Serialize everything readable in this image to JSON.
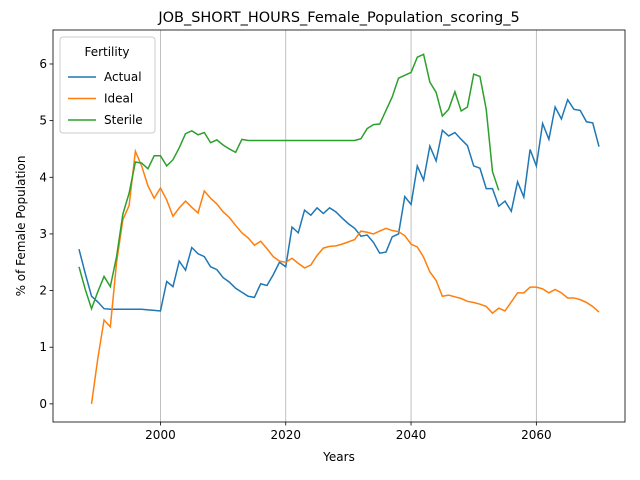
{
  "chart_data": {
    "type": "line",
    "title": "JOB_SHORT_HOURS_Female_Population_scoring_5",
    "x_label": "Years",
    "y_label": "% of Female Population",
    "x": [
      1987,
      1988,
      1989,
      1990,
      1991,
      1992,
      1993,
      1994,
      1995,
      1996,
      1997,
      1998,
      1999,
      2000,
      2001,
      2002,
      2003,
      2004,
      2005,
      2006,
      2007,
      2008,
      2009,
      2010,
      2011,
      2012,
      2013,
      2014,
      2015,
      2016,
      2017,
      2018,
      2019,
      2020,
      2021,
      2022,
      2023,
      2024,
      2025,
      2026,
      2027,
      2028,
      2029,
      2030,
      2031,
      2032,
      2033,
      2034,
      2035,
      2036,
      2037,
      2038,
      2039,
      2040,
      2041,
      2042,
      2043,
      2044,
      2045,
      2046,
      2047,
      2048,
      2049,
      2050,
      2051,
      2052,
      2053,
      2054,
      2055,
      2056,
      2057,
      2058,
      2059,
      2060,
      2061,
      2062,
      2063,
      2064,
      2065,
      2066,
      2067,
      2068,
      2069,
      2070
    ],
    "series": [
      {
        "name": "Actual",
        "color": "#1f77b4",
        "values": [
          2.73,
          2.3,
          1.9,
          1.8,
          1.68,
          1.67,
          1.67,
          1.67,
          1.67,
          1.67,
          1.67,
          1.66,
          1.65,
          1.64,
          2.16,
          2.07,
          2.52,
          2.36,
          2.76,
          2.65,
          2.6,
          2.42,
          2.37,
          2.23,
          2.15,
          2.04,
          1.97,
          1.9,
          1.88,
          2.12,
          2.09,
          2.28,
          2.5,
          2.42,
          3.12,
          3.02,
          3.42,
          3.33,
          3.46,
          3.36,
          3.46,
          3.39,
          3.28,
          3.18,
          3.1,
          2.96,
          2.98,
          2.85,
          2.66,
          2.68,
          2.95,
          3.0,
          3.66,
          3.52,
          4.2,
          3.95,
          4.55,
          4.29,
          4.83,
          4.73,
          4.79,
          4.67,
          4.56,
          4.2,
          4.16,
          3.8,
          3.8,
          3.49,
          3.58,
          3.4,
          3.92,
          3.65,
          4.49,
          4.2,
          4.95,
          4.67,
          5.24,
          5.03,
          5.37,
          5.2,
          5.18,
          4.98,
          4.96,
          4.54
        ]
      },
      {
        "name": "Ideal",
        "color": "#ff7f0e",
        "values": [
          null,
          null,
          0,
          0.8,
          1.48,
          1.36,
          2.5,
          3.25,
          3.5,
          4.46,
          4.2,
          3.85,
          3.63,
          3.81,
          3.6,
          3.31,
          3.46,
          3.58,
          3.47,
          3.37,
          3.76,
          3.63,
          3.53,
          3.39,
          3.29,
          3.15,
          3.02,
          2.93,
          2.8,
          2.87,
          2.74,
          2.6,
          2.52,
          2.5,
          2.57,
          2.48,
          2.4,
          2.45,
          2.62,
          2.75,
          2.78,
          2.79,
          2.82,
          2.86,
          2.9,
          3.05,
          3.03,
          3.0,
          3.05,
          3.1,
          3.06,
          3.04,
          2.97,
          2.82,
          2.77,
          2.59,
          2.33,
          2.18,
          1.9,
          1.92,
          1.89,
          1.86,
          1.81,
          1.79,
          1.76,
          1.72,
          1.6,
          1.69,
          1.64,
          1.8,
          1.96,
          1.96,
          2.06,
          2.06,
          2.03,
          1.96,
          2.02,
          1.96,
          1.87,
          1.87,
          1.84,
          1.79,
          1.72,
          1.62
        ]
      },
      {
        "name": "Sterile",
        "color": "#2ca02c",
        "values": [
          2.42,
          2.02,
          1.68,
          1.98,
          2.25,
          2.07,
          2.6,
          3.35,
          3.72,
          4.27,
          4.25,
          4.15,
          4.38,
          4.38,
          4.2,
          4.31,
          4.52,
          4.77,
          4.82,
          4.75,
          4.79,
          4.61,
          4.66,
          4.57,
          4.5,
          4.44,
          4.67,
          4.65,
          4.65,
          4.65,
          4.65,
          4.65,
          4.65,
          4.65,
          4.65,
          4.65,
          4.65,
          4.65,
          4.65,
          4.65,
          4.65,
          4.65,
          4.65,
          4.65,
          4.65,
          4.68,
          4.86,
          4.93,
          4.94,
          5.18,
          5.42,
          5.75,
          5.8,
          5.85,
          6.12,
          6.17,
          5.68,
          5.5,
          5.08,
          5.2,
          5.51,
          5.17,
          5.24,
          5.82,
          5.78,
          5.2,
          4.1,
          3.77,
          null,
          null,
          null,
          null,
          null,
          null,
          null,
          null,
          null,
          null,
          null,
          null,
          null,
          null,
          null,
          null
        ]
      }
    ],
    "xlim": [
      1982.85,
      2074.15
    ],
    "xticks": [
      2000,
      2020,
      2040,
      2060
    ],
    "ylim": [
      -0.32,
      6.6
    ],
    "yticks": [
      0,
      1,
      2,
      3,
      4,
      5,
      6
    ],
    "grid": true,
    "grid_axis": "x",
    "legend_title": "Fertility",
    "legend_position": "upper left"
  }
}
